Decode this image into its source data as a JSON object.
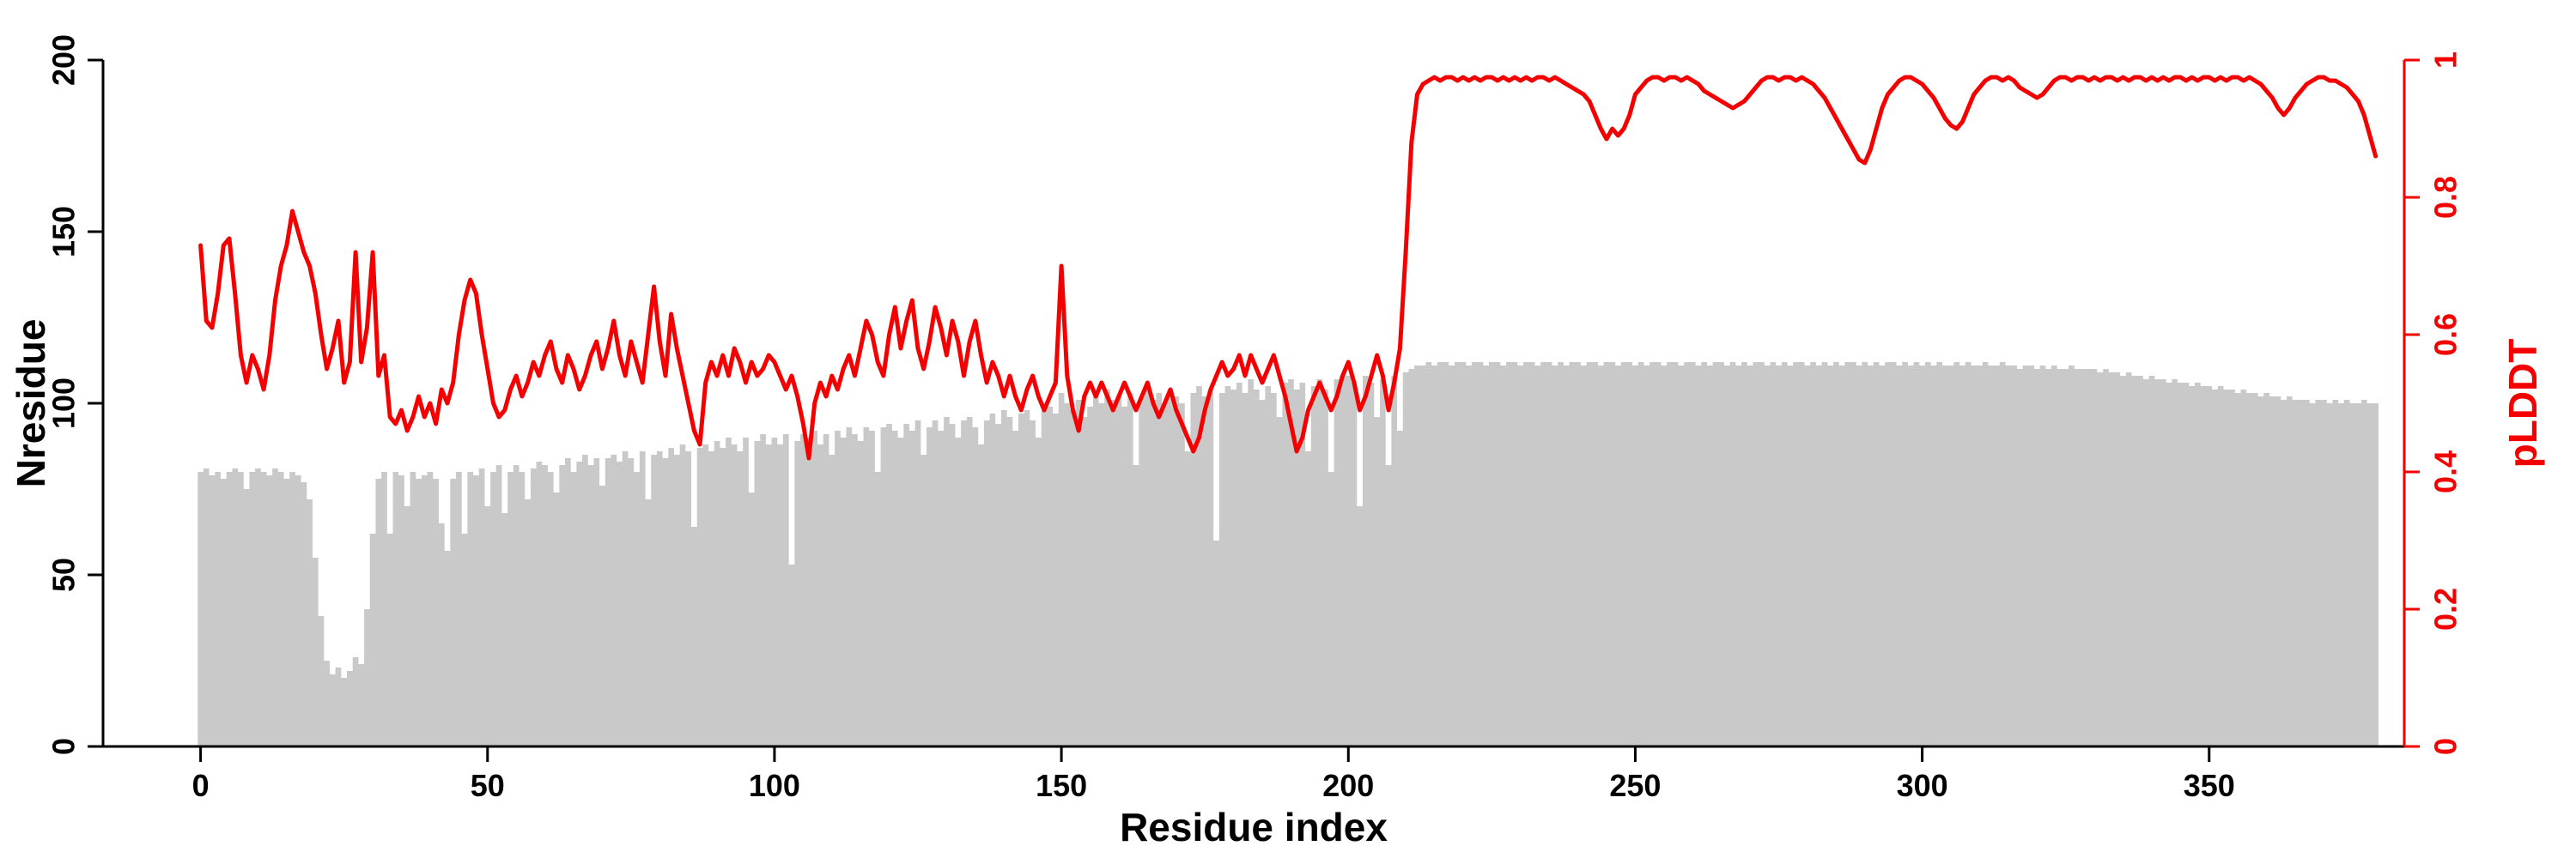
{
  "figure": {
    "xlabel": "Residue index",
    "ylabel_left": "Nresidue",
    "ylabel_right": "pLDDT",
    "background": "#ffffff",
    "colors": {
      "bars": "#c9c9c9",
      "line": "#f40000",
      "axis": "#000000",
      "right_axis": "#f40000"
    }
  },
  "chart_data": {
    "type": "bar+line",
    "title": "",
    "xlabel": "Residue index",
    "ylabel_left": "Nresidue",
    "ylabel_right": "pLDDT",
    "grid": false,
    "legend": "none",
    "x_start": 0,
    "x_step": 1,
    "xlim": [
      -17,
      384
    ],
    "ylim_left": [
      0,
      200
    ],
    "ylim_right": [
      0,
      1
    ],
    "x_ticks": [
      0,
      50,
      100,
      150,
      200,
      250,
      300,
      350
    ],
    "y_left_ticks": [
      0,
      50,
      100,
      150,
      200
    ],
    "y_right_ticks": [
      0,
      0.2,
      0.4,
      0.6,
      0.8,
      1
    ],
    "series": [
      {
        "name": "Nresidue",
        "type": "bar",
        "axis": "left",
        "color": "#c9c9c9",
        "values": [
          80,
          81,
          79,
          80,
          78,
          80,
          81,
          80,
          75,
          80,
          81,
          80,
          79,
          81,
          80,
          78,
          80,
          79,
          77,
          72,
          55,
          38,
          25,
          21,
          23,
          20,
          22,
          26,
          24,
          40,
          62,
          78,
          80,
          62,
          80,
          79,
          70,
          80,
          78,
          79,
          80,
          78,
          65,
          57,
          78,
          80,
          62,
          80,
          79,
          81,
          70,
          80,
          82,
          68,
          80,
          82,
          80,
          72,
          81,
          83,
          82,
          80,
          74,
          82,
          84,
          80,
          83,
          85,
          82,
          84,
          76,
          84,
          85,
          83,
          86,
          84,
          80,
          86,
          72,
          85,
          86,
          84,
          87,
          85,
          88,
          86,
          64,
          87,
          88,
          86,
          89,
          87,
          90,
          88,
          86,
          90,
          74,
          89,
          91,
          88,
          90,
          88,
          91,
          53,
          89,
          91,
          90,
          92,
          88,
          91,
          85,
          92,
          90,
          93,
          91,
          89,
          93,
          92,
          80,
          93,
          94,
          92,
          90,
          94,
          92,
          95,
          85,
          93,
          95,
          92,
          96,
          94,
          90,
          95,
          96,
          93,
          88,
          95,
          97,
          94,
          98,
          96,
          92,
          97,
          98,
          95,
          90,
          98,
          99,
          97,
          103,
          100,
          98,
          101,
          96,
          99,
          102,
          100,
          104,
          101,
          102,
          99,
          103,
          82,
          102,
          104,
          101,
          103,
          100,
          104,
          102,
          100,
          86,
          103,
          105,
          102,
          104,
          60,
          103,
          105,
          104,
          106,
          103,
          107,
          104,
          101,
          105,
          103,
          96,
          106,
          107,
          104,
          106,
          86,
          105,
          107,
          104,
          80,
          107,
          108,
          108,
          106,
          70,
          108,
          106,
          96,
          107,
          82,
          108,
          92,
          109,
          110,
          111,
          111,
          112,
          111,
          112,
          112,
          111,
          112,
          112,
          111,
          112,
          112,
          111,
          112,
          112,
          111,
          112,
          112,
          111,
          112,
          112,
          111,
          112,
          112,
          111,
          112,
          111,
          112,
          112,
          111,
          112,
          112,
          111,
          112,
          112,
          111,
          112,
          112,
          111,
          112,
          111,
          112,
          112,
          111,
          112,
          112,
          111,
          112,
          112,
          111,
          112,
          111,
          112,
          112,
          111,
          112,
          111,
          112,
          111,
          112,
          112,
          111,
          112,
          111,
          112,
          111,
          112,
          112,
          111,
          112,
          111,
          112,
          111,
          112,
          111,
          112,
          112,
          111,
          112,
          111,
          112,
          111,
          112,
          112,
          111,
          112,
          111,
          112,
          111,
          112,
          111,
          112,
          111,
          111,
          112,
          111,
          112,
          111,
          111,
          112,
          111,
          111,
          112,
          111,
          111,
          110,
          111,
          111,
          110,
          111,
          110,
          111,
          110,
          110,
          111,
          110,
          110,
          110,
          110,
          109,
          110,
          109,
          109,
          108,
          109,
          108,
          108,
          107,
          108,
          107,
          107,
          106,
          107,
          106,
          106,
          105,
          106,
          105,
          105,
          104,
          105,
          104,
          104,
          103,
          104,
          103,
          103,
          102,
          103,
          102,
          102,
          101,
          102,
          101,
          101,
          101,
          100,
          101,
          101,
          100,
          101,
          100,
          101,
          100,
          100,
          101,
          100,
          100
        ]
      },
      {
        "name": "pLDDT",
        "type": "line",
        "axis": "right",
        "color": "#f40000",
        "values": [
          0.73,
          0.62,
          0.61,
          0.66,
          0.73,
          0.74,
          0.66,
          0.57,
          0.53,
          0.57,
          0.55,
          0.52,
          0.57,
          0.65,
          0.7,
          0.73,
          0.78,
          0.75,
          0.72,
          0.7,
          0.66,
          0.6,
          0.55,
          0.58,
          0.62,
          0.53,
          0.56,
          0.72,
          0.56,
          0.61,
          0.72,
          0.54,
          0.57,
          0.48,
          0.47,
          0.49,
          0.46,
          0.48,
          0.51,
          0.48,
          0.5,
          0.47,
          0.52,
          0.5,
          0.53,
          0.6,
          0.65,
          0.68,
          0.66,
          0.6,
          0.55,
          0.5,
          0.48,
          0.49,
          0.52,
          0.54,
          0.51,
          0.53,
          0.56,
          0.54,
          0.57,
          0.59,
          0.55,
          0.53,
          0.57,
          0.55,
          0.52,
          0.54,
          0.57,
          0.59,
          0.55,
          0.58,
          0.62,
          0.57,
          0.54,
          0.59,
          0.56,
          0.53,
          0.6,
          0.67,
          0.59,
          0.54,
          0.63,
          0.58,
          0.54,
          0.5,
          0.46,
          0.44,
          0.53,
          0.56,
          0.54,
          0.57,
          0.54,
          0.58,
          0.56,
          0.53,
          0.56,
          0.54,
          0.55,
          0.57,
          0.56,
          0.54,
          0.52,
          0.54,
          0.51,
          0.47,
          0.42,
          0.5,
          0.53,
          0.51,
          0.54,
          0.52,
          0.55,
          0.57,
          0.54,
          0.58,
          0.62,
          0.6,
          0.56,
          0.54,
          0.6,
          0.64,
          0.58,
          0.62,
          0.65,
          0.58,
          0.55,
          0.59,
          0.64,
          0.61,
          0.57,
          0.62,
          0.59,
          0.54,
          0.59,
          0.62,
          0.57,
          0.53,
          0.56,
          0.54,
          0.51,
          0.54,
          0.51,
          0.49,
          0.52,
          0.54,
          0.51,
          0.49,
          0.51,
          0.53,
          0.7,
          0.54,
          0.49,
          0.46,
          0.51,
          0.53,
          0.51,
          0.53,
          0.51,
          0.49,
          0.51,
          0.53,
          0.51,
          0.49,
          0.51,
          0.53,
          0.5,
          0.48,
          0.5,
          0.52,
          0.49,
          0.47,
          0.45,
          0.43,
          0.45,
          0.49,
          0.52,
          0.54,
          0.56,
          0.54,
          0.55,
          0.57,
          0.54,
          0.57,
          0.55,
          0.53,
          0.55,
          0.57,
          0.54,
          0.51,
          0.47,
          0.43,
          0.45,
          0.49,
          0.51,
          0.53,
          0.51,
          0.49,
          0.51,
          0.54,
          0.56,
          0.53,
          0.49,
          0.51,
          0.54,
          0.57,
          0.54,
          0.49,
          0.53,
          0.58,
          0.72,
          0.88,
          0.95,
          0.965,
          0.97,
          0.975,
          0.97,
          0.975,
          0.975,
          0.97,
          0.975,
          0.97,
          0.975,
          0.97,
          0.975,
          0.975,
          0.97,
          0.975,
          0.97,
          0.975,
          0.97,
          0.975,
          0.97,
          0.975,
          0.975,
          0.97,
          0.975,
          0.97,
          0.965,
          0.96,
          0.955,
          0.95,
          0.94,
          0.92,
          0.9,
          0.885,
          0.9,
          0.89,
          0.9,
          0.92,
          0.95,
          0.96,
          0.97,
          0.975,
          0.975,
          0.97,
          0.975,
          0.975,
          0.97,
          0.975,
          0.97,
          0.965,
          0.955,
          0.95,
          0.945,
          0.94,
          0.935,
          0.93,
          0.935,
          0.94,
          0.95,
          0.96,
          0.97,
          0.975,
          0.975,
          0.97,
          0.975,
          0.975,
          0.97,
          0.975,
          0.97,
          0.965,
          0.955,
          0.945,
          0.93,
          0.915,
          0.9,
          0.885,
          0.87,
          0.855,
          0.85,
          0.87,
          0.9,
          0.93,
          0.95,
          0.96,
          0.97,
          0.975,
          0.975,
          0.97,
          0.965,
          0.955,
          0.945,
          0.93,
          0.915,
          0.905,
          0.9,
          0.91,
          0.93,
          0.95,
          0.96,
          0.97,
          0.975,
          0.975,
          0.97,
          0.975,
          0.97,
          0.96,
          0.955,
          0.95,
          0.945,
          0.95,
          0.96,
          0.97,
          0.975,
          0.975,
          0.97,
          0.975,
          0.975,
          0.97,
          0.975,
          0.97,
          0.975,
          0.975,
          0.97,
          0.975,
          0.97,
          0.975,
          0.975,
          0.97,
          0.975,
          0.97,
          0.975,
          0.97,
          0.975,
          0.975,
          0.97,
          0.975,
          0.97,
          0.975,
          0.975,
          0.97,
          0.975,
          0.97,
          0.975,
          0.975,
          0.97,
          0.975,
          0.97,
          0.965,
          0.955,
          0.945,
          0.93,
          0.92,
          0.93,
          0.945,
          0.955,
          0.965,
          0.97,
          0.975,
          0.975,
          0.97,
          0.97,
          0.965,
          0.96,
          0.95,
          0.94,
          0.92,
          0.89,
          0.86
        ]
      }
    ]
  }
}
